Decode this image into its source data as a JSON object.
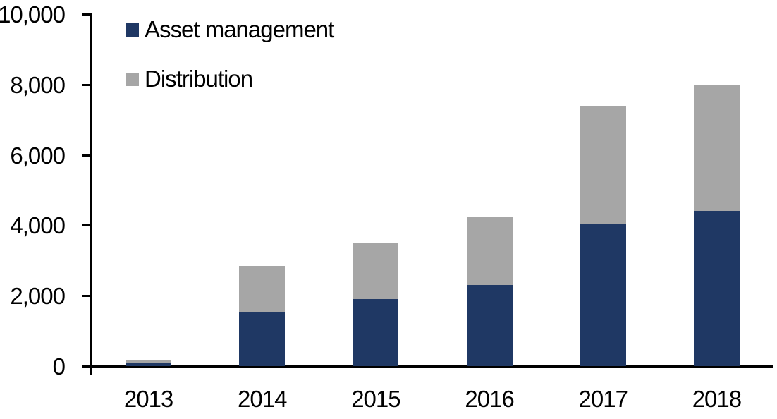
{
  "chart_data": {
    "type": "bar",
    "stacked": true,
    "title": "",
    "xlabel": "",
    "ylabel": "",
    "categories": [
      "2013",
      "2014",
      "2015",
      "2016",
      "2017",
      "2018"
    ],
    "series": [
      {
        "name": "Asset management",
        "color": "#1F3864",
        "values": [
          100,
          1550,
          1900,
          2300,
          4050,
          4400
        ]
      },
      {
        "name": "Distribution",
        "color": "#A6A6A6",
        "values": [
          90,
          1300,
          1600,
          1950,
          3350,
          3600
        ]
      }
    ],
    "totals": [
      190,
      2850,
      3500,
      4250,
      7400,
      8000
    ],
    "ylim": [
      0,
      10000
    ],
    "ytick_interval": 2000,
    "ytick_labels": [
      "0",
      "2,000",
      "4,000",
      "6,000",
      "8,000",
      "10,000"
    ],
    "grid": false,
    "legend_position": "top-left-inside",
    "axis_color": "#000000",
    "text_color": "#000000",
    "background_color": "#FFFFFF"
  }
}
